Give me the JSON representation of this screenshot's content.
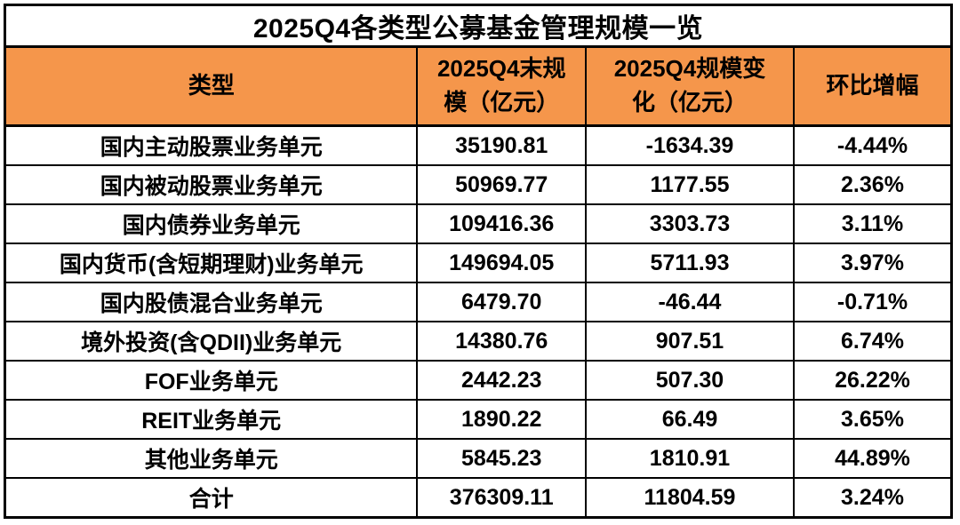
{
  "title": "2025Q4各类型公募基金管理规模一览",
  "colors": {
    "header_bg": "#F5964B",
    "border": "#000000",
    "text": "#000000",
    "row_bg": "#FFFFFF"
  },
  "chart_data": {
    "type": "table",
    "title": "2025Q4各类型公募基金管理规模一览",
    "columns": [
      "类型",
      "2025Q4末规模（亿元）",
      "2025Q4规模变化（亿元）",
      "环比增幅"
    ],
    "rows": [
      [
        "国内主动股票业务单元",
        "35190.81",
        "-1634.39",
        "-4.44%"
      ],
      [
        "国内被动股票业务单元",
        "50969.77",
        "1177.55",
        "2.36%"
      ],
      [
        "国内债券业务单元",
        "109416.36",
        "3303.73",
        "3.11%"
      ],
      [
        "国内货币(含短期理财)业务单元",
        "149694.05",
        "5711.93",
        "3.97%"
      ],
      [
        "国内股债混合业务单元",
        "6479.70",
        "-46.44",
        "-0.71%"
      ],
      [
        "境外投资(含QDII)业务单元",
        "14380.76",
        "907.51",
        "6.74%"
      ],
      [
        "FOF业务单元",
        "2442.23",
        "507.30",
        "26.22%"
      ],
      [
        "REIT业务单元",
        "1890.22",
        "66.49",
        "3.65%"
      ],
      [
        "其他业务单元",
        "5845.23",
        "1810.91",
        "44.89%"
      ],
      [
        "合计",
        "376309.11",
        "11804.59",
        "3.24%"
      ]
    ]
  }
}
